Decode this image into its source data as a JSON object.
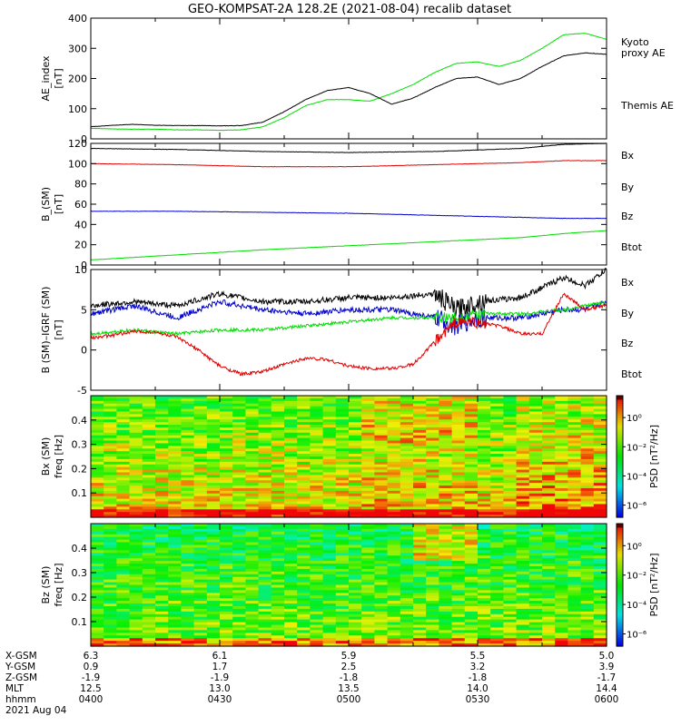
{
  "title": "GEO-KOMPSAT-2A 128.2E (2021-08-04) recalib dataset",
  "colors": {
    "black": "#000000",
    "red": "#e00000",
    "green": "#00dd00",
    "blue": "#0000cc",
    "kyoto": "#33cc33"
  },
  "chart_data": [
    {
      "type": "line",
      "ylabel": [
        "AE_index",
        "[nT]"
      ],
      "ylim": [
        0,
        400
      ],
      "yticks": [
        0,
        100,
        200,
        300,
        400
      ],
      "legend": [
        {
          "label": "Kyoto",
          "color": "#33cc33"
        },
        {
          "label": "proxy AE",
          "color": "#33cc33"
        },
        {
          "label": "Themis AE",
          "color": "#000000"
        }
      ],
      "series": [
        {
          "name": "Kyoto proxy AE",
          "color": "#00dd00",
          "x": [
            0,
            5,
            10,
            15,
            20,
            25,
            30,
            35,
            40,
            45,
            50,
            55,
            60,
            65,
            70,
            75,
            80,
            85,
            90,
            95,
            100,
            105,
            110,
            115,
            120
          ],
          "y": [
            35,
            33,
            32,
            32,
            30,
            30,
            28,
            30,
            40,
            70,
            110,
            130,
            130,
            125,
            150,
            180,
            220,
            250,
            255,
            240,
            260,
            300,
            345,
            350,
            330
          ]
        },
        {
          "name": "Themis AE",
          "color": "#000000",
          "x": [
            0,
            5,
            10,
            15,
            20,
            25,
            30,
            35,
            40,
            45,
            50,
            55,
            60,
            65,
            70,
            75,
            80,
            85,
            90,
            95,
            100,
            105,
            110,
            115,
            120
          ],
          "y": [
            40,
            45,
            48,
            45,
            44,
            44,
            43,
            44,
            55,
            90,
            130,
            160,
            170,
            150,
            115,
            135,
            170,
            200,
            205,
            180,
            200,
            240,
            275,
            285,
            280
          ]
        }
      ]
    },
    {
      "type": "line",
      "ylabel": [
        "B_(SM)",
        "[nT]"
      ],
      "ylim": [
        0,
        120
      ],
      "yticks": [
        0,
        20,
        40,
        60,
        80,
        100,
        120
      ],
      "legend": [
        {
          "label": "Bx",
          "color": "#0000cc"
        },
        {
          "label": "By",
          "color": "#00dd00"
        },
        {
          "label": "Bz",
          "color": "#e00000"
        },
        {
          "label": "Btot",
          "color": "#000000"
        }
      ],
      "series": [
        {
          "name": "Btot",
          "color": "#000000",
          "x": [
            0,
            20,
            40,
            60,
            80,
            100,
            110,
            120
          ],
          "y": [
            115,
            114,
            112,
            111,
            112,
            115,
            119,
            120
          ]
        },
        {
          "name": "Bz",
          "color": "#e00000",
          "x": [
            0,
            20,
            40,
            60,
            80,
            100,
            110,
            120
          ],
          "y": [
            100,
            99,
            97,
            97,
            99,
            101,
            103,
            103
          ]
        },
        {
          "name": "Bx",
          "color": "#0000cc",
          "x": [
            0,
            20,
            40,
            60,
            80,
            100,
            110,
            120
          ],
          "y": [
            53,
            53,
            52,
            51,
            49,
            47,
            46,
            46
          ]
        },
        {
          "name": "By",
          "color": "#00dd00",
          "x": [
            0,
            20,
            40,
            60,
            80,
            100,
            110,
            120
          ],
          "y": [
            5,
            10,
            15,
            19,
            23,
            27,
            31,
            34
          ]
        }
      ]
    },
    {
      "type": "line",
      "ylabel": [
        "B (SM)–IGRF (SM)",
        "[nT]"
      ],
      "ylim": [
        -5,
        10
      ],
      "yticks": [
        -5,
        0,
        5,
        10
      ],
      "legend": [
        {
          "label": "Bx",
          "color": "#0000cc"
        },
        {
          "label": "By",
          "color": "#00dd00"
        },
        {
          "label": "Bz",
          "color": "#e00000"
        },
        {
          "label": "Btot",
          "color": "#000000"
        }
      ],
      "series": [
        {
          "name": "Btot",
          "color": "#000000",
          "x": [
            0,
            10,
            20,
            30,
            40,
            50,
            60,
            70,
            80,
            85,
            90,
            100,
            110,
            115,
            120
          ],
          "y": [
            5.5,
            6,
            5.5,
            7,
            6,
            6,
            6.5,
            6.5,
            7,
            5,
            6,
            6.5,
            9,
            8,
            10
          ]
        },
        {
          "name": "Bx",
          "color": "#0000cc",
          "x": [
            0,
            10,
            20,
            30,
            40,
            50,
            60,
            70,
            80,
            85,
            90,
            100,
            110,
            115,
            120
          ],
          "y": [
            4.5,
            5.5,
            4,
            6,
            5,
            4.5,
            5,
            5,
            4,
            3,
            4,
            4,
            5,
            5,
            6
          ]
        },
        {
          "name": "By",
          "color": "#00dd00",
          "x": [
            0,
            10,
            20,
            30,
            40,
            50,
            60,
            70,
            80,
            85,
            90,
            100,
            110,
            115,
            120
          ],
          "y": [
            2,
            2.5,
            2,
            2.5,
            2.5,
            3,
            3.5,
            4,
            4,
            4,
            4.5,
            4.5,
            5,
            5.5,
            6
          ]
        },
        {
          "name": "Bz",
          "color": "#e00000",
          "x": [
            0,
            5,
            10,
            15,
            20,
            25,
            30,
            35,
            40,
            45,
            50,
            55,
            60,
            65,
            70,
            75,
            80,
            85,
            90,
            95,
            100,
            105,
            110,
            115,
            120
          ],
          "y": [
            1.5,
            1.8,
            2.3,
            2.2,
            1.6,
            0,
            -2,
            -3,
            -2.7,
            -1.8,
            -1,
            -1.2,
            -2,
            -2.3,
            -2.3,
            -1.8,
            1,
            3.5,
            3.4,
            3,
            2,
            2,
            7,
            5,
            5.5
          ]
        }
      ]
    },
    {
      "type": "heatmap",
      "ylabel": [
        "Bx (SM)",
        "freq [Hz]"
      ],
      "ylim": [
        0,
        0.5
      ],
      "yticks": [
        0.1,
        0.2,
        0.3,
        0.4
      ],
      "colorbar": {
        "label": "PSD [nT²/Hz]",
        "ticks": [
          "10⁰",
          "10⁻²",
          "10⁻⁴",
          "10⁻⁶"
        ]
      }
    },
    {
      "type": "heatmap",
      "ylabel": [
        "Bz (SM)",
        "freq [Hz]"
      ],
      "ylim": [
        0,
        0.5
      ],
      "yticks": [
        0.1,
        0.2,
        0.3,
        0.4
      ],
      "colorbar": {
        "label": "PSD [nT²/Hz]",
        "ticks": [
          "10⁰",
          "10⁻²",
          "10⁻⁴",
          "10⁻⁶"
        ]
      }
    }
  ],
  "x_axis": {
    "row_labels": [
      "X-GSM",
      "Y-GSM",
      "Z-GSM",
      "MLT",
      "hhmm"
    ],
    "date": "2021 Aug 04",
    "ticks": [
      {
        "x": 0,
        "values": [
          "6.3",
          "0.9",
          "-1.9",
          "12.5",
          "0400"
        ]
      },
      {
        "x": 30,
        "values": [
          "6.1",
          "1.7",
          "-1.9",
          "13.0",
          "0430"
        ]
      },
      {
        "x": 60,
        "values": [
          "5.9",
          "2.5",
          "-1.8",
          "13.5",
          "0500"
        ]
      },
      {
        "x": 90,
        "values": [
          "5.5",
          "3.2",
          "-1.8",
          "14.0",
          "0530"
        ]
      },
      {
        "x": 120,
        "values": [
          "5.0",
          "3.9",
          "-1.7",
          "14.4",
          "0600"
        ]
      }
    ]
  }
}
